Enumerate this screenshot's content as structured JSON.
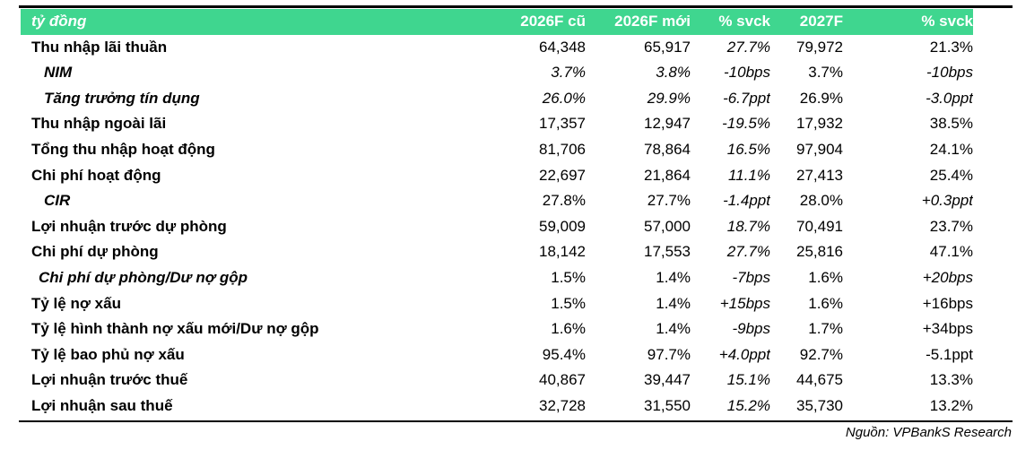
{
  "table": {
    "headers": [
      "tỷ đồng",
      "2026F cũ",
      "2026F mới",
      "% svck",
      "2027F",
      "% svck"
    ],
    "rows": [
      {
        "label": "Thu nhập lãi thuần",
        "style": "main",
        "values": [
          "64,348",
          "65,917",
          "27.7%",
          "79,972",
          "21.3%"
        ]
      },
      {
        "label": "NIM",
        "style": "sub",
        "values": [
          "3.7%",
          "3.8%",
          "-10bps",
          "3.7%",
          "-10bps"
        ]
      },
      {
        "label": "Tăng trưởng tín dụng",
        "style": "sub",
        "values": [
          "26.0%",
          "29.9%",
          "-6.7ppt",
          "26.9%",
          "-3.0ppt"
        ]
      },
      {
        "label": "Thu nhập ngoài lãi",
        "style": "main",
        "values": [
          "17,357",
          "12,947",
          "-19.5%",
          "17,932",
          "38.5%"
        ]
      },
      {
        "label": "Tổng thu nhập hoạt động",
        "style": "main",
        "values": [
          "81,706",
          "78,864",
          "16.5%",
          "97,904",
          "24.1%"
        ]
      },
      {
        "label": "Chi phí hoạt động",
        "style": "main",
        "values": [
          "22,697",
          "21,864",
          "11.1%",
          "27,413",
          "25.4%"
        ]
      },
      {
        "label": "CIR",
        "style": "sub",
        "values": [
          "27.8%",
          "27.7%",
          "-1.4ppt",
          "28.0%",
          "+0.3ppt"
        ]
      },
      {
        "label": "Lợi nhuận trước dự phòng",
        "style": "main",
        "values": [
          "59,009",
          "57,000",
          "18.7%",
          "70,491",
          "23.7%"
        ]
      },
      {
        "label": "Chi phí dự phòng",
        "style": "main",
        "values": [
          "18,142",
          "17,553",
          "27.7%",
          "25,816",
          "47.1%"
        ]
      },
      {
        "label": "Chi phí dự phòng/Dư nợ gộp",
        "style": "sub2",
        "values": [
          "1.5%",
          "1.4%",
          "-7bps",
          "1.6%",
          "+20bps"
        ]
      },
      {
        "label": "Tỷ lệ nợ xấu",
        "style": "main",
        "values": [
          "1.5%",
          "1.4%",
          "+15bps",
          "1.6%",
          "+16bps"
        ]
      },
      {
        "label": "Tỷ lệ hình thành nợ xấu mới/Dư nợ gộp",
        "style": "main",
        "values": [
          "1.6%",
          "1.4%",
          "-9bps",
          "1.7%",
          "+34bps"
        ]
      },
      {
        "label": "Tỷ lệ bao phủ nợ xấu",
        "style": "main",
        "values": [
          "95.4%",
          "97.7%",
          "+4.0ppt",
          "92.7%",
          "-5.1ppt"
        ]
      },
      {
        "label": "Lợi nhuận trước thuế",
        "style": "main",
        "values": [
          "40,867",
          "39,447",
          "15.1%",
          "44,675",
          "13.3%"
        ]
      },
      {
        "label": "Lợi nhuận sau thuế",
        "style": "main",
        "values": [
          "32,728",
          "31,550",
          "15.2%",
          "35,730",
          "13.2%"
        ]
      }
    ]
  },
  "source": "Nguồn: VPBankS Research",
  "colors": {
    "header_bg": "#3fd68f",
    "header_text": "#ffffff",
    "rule": "#000000"
  }
}
